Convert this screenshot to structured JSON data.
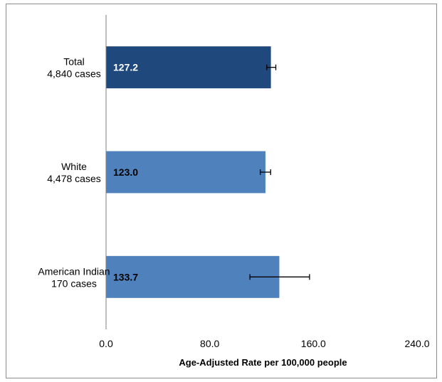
{
  "chart_data": {
    "type": "bar",
    "orientation": "horizontal",
    "categories": [
      [
        "Total",
        "4,840 cases"
      ],
      [
        "White",
        "4,478 cases"
      ],
      [
        "American Indian",
        "170 cases"
      ]
    ],
    "values": [
      127.2,
      123.0,
      133.7
    ],
    "value_labels": [
      "127.2",
      "123.0",
      "133.7"
    ],
    "error_low": [
      124.0,
      119.0,
      111.0
    ],
    "error_high": [
      131.0,
      127.0,
      157.0
    ],
    "xlabel": "Age-Adjusted Rate per 100,000 people",
    "ylabel": "",
    "xlim": [
      0,
      240
    ],
    "x_ticks": [
      "0.0",
      "80.0",
      "160.0",
      "240.0"
    ],
    "x_tick_values": [
      0,
      80,
      160,
      240
    ],
    "grid": false,
    "colors": {
      "highlight_bar": "#1F497D",
      "bar": "#4F81BD",
      "highlight_label": "#FFFFFF",
      "label": "#000000",
      "axis": "#7F7F7F"
    },
    "highlight_index": 0
  }
}
